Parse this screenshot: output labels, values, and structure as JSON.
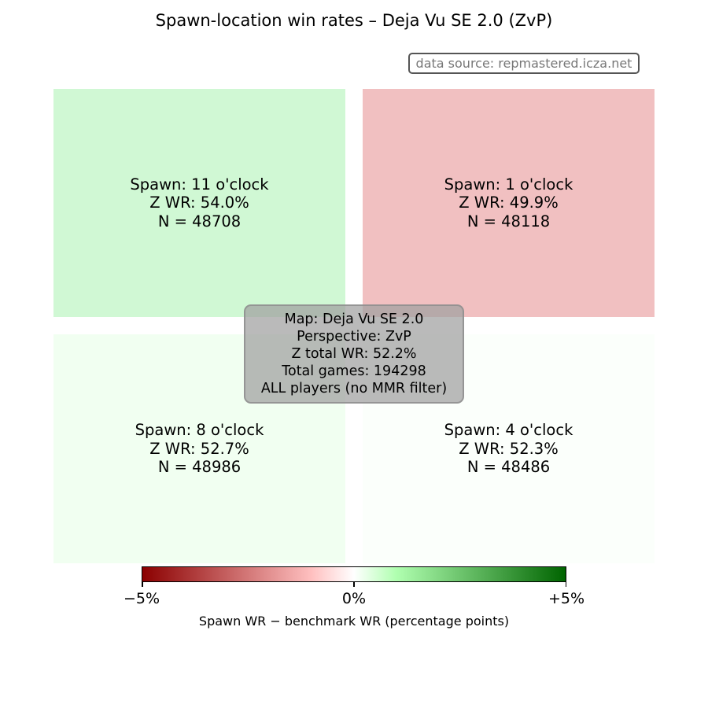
{
  "chart_data": {
    "type": "heatmap",
    "title": "Spawn-location win rates – Deja Vu SE 2.0 (ZvP)",
    "source_note": "data source: repmastered.icza.net",
    "benchmark_wr": 52.2,
    "cells": [
      {
        "id": "q11",
        "spawn_label": "Spawn: 11 o'clock",
        "wr_label": "Z WR: 54.0%",
        "n_label": "N = 48708",
        "wr": 54.0,
        "n": 48708,
        "color": "#d0f8d4"
      },
      {
        "id": "q1",
        "spawn_label": "Spawn: 1 o'clock",
        "wr_label": "Z WR: 49.9%",
        "n_label": "N = 48118",
        "wr": 49.9,
        "n": 48118,
        "color": "#f1c0c1"
      },
      {
        "id": "q8",
        "spawn_label": "Spawn: 8 o'clock",
        "wr_label": "Z WR: 52.7%",
        "n_label": "N = 48986",
        "wr": 52.7,
        "n": 48986,
        "color": "#f1fff1"
      },
      {
        "id": "q4",
        "spawn_label": "Spawn: 4 o'clock",
        "wr_label": "Z WR: 52.3%",
        "n_label": "N = 48486",
        "wr": 52.3,
        "n": 48486,
        "color": "#fbfffb"
      }
    ],
    "info_box": {
      "lines": [
        "Map: Deja Vu SE 2.0",
        "Perspective: ZvP",
        "Z total WR: 52.2%",
        "Total games: 194298",
        "ALL players (no MMR filter)"
      ]
    },
    "colorbar": {
      "range": [
        -5,
        5
      ],
      "ticks": [
        -5,
        0,
        5
      ],
      "tick_labels": [
        "−5%",
        "0%",
        "+5%"
      ],
      "label": "Spawn WR − benchmark WR (percentage points)"
    }
  }
}
